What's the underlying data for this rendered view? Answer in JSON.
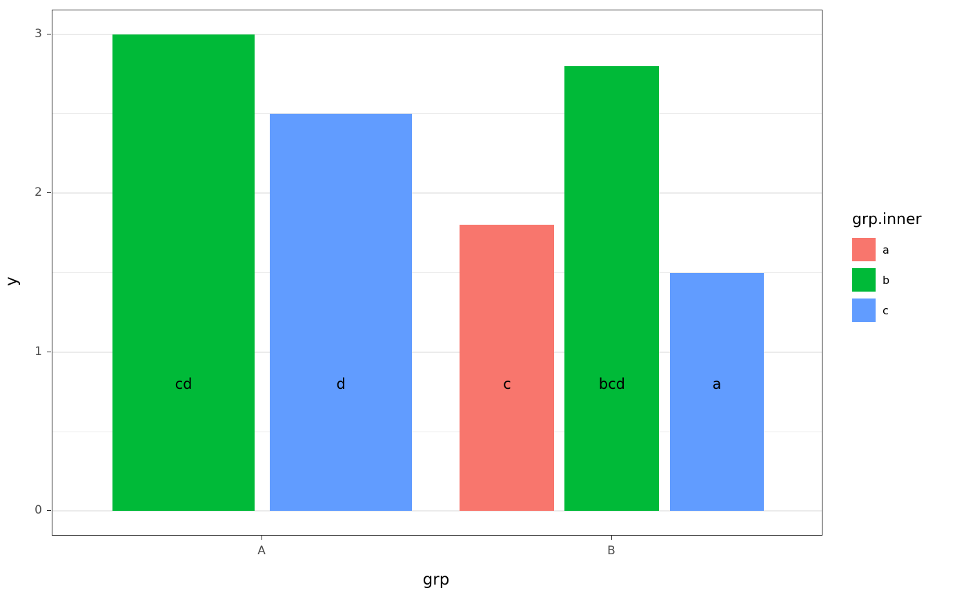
{
  "chart_data": {
    "type": "bar",
    "title": "",
    "xlabel": "grp",
    "ylabel": "y",
    "ylim": [
      0,
      3
    ],
    "yticks": [
      0,
      1,
      2,
      3
    ],
    "minor_gridlines": [
      0.5,
      1.5,
      2.5
    ],
    "categories": [
      "A",
      "B"
    ],
    "grid": "on",
    "legend_position": "right",
    "legend": {
      "title": "grp.inner",
      "entries": [
        {
          "label": "a",
          "color": "#F8766D"
        },
        {
          "label": "b",
          "color": "#00BA38"
        },
        {
          "label": "c",
          "color": "#619CFF"
        }
      ]
    },
    "bars": [
      {
        "group": "A",
        "inner": "b",
        "value": 3.0,
        "label": "cd",
        "color": "#00BA38"
      },
      {
        "group": "A",
        "inner": "c",
        "value": 2.5,
        "label": "d",
        "color": "#619CFF"
      },
      {
        "group": "B",
        "inner": "a",
        "value": 1.8,
        "label": "c",
        "color": "#F8766D"
      },
      {
        "group": "B",
        "inner": "b",
        "value": 2.8,
        "label": "bcd",
        "color": "#00BA38"
      },
      {
        "group": "B",
        "inner": "c",
        "value": 1.5,
        "label": "a",
        "color": "#619CFF"
      }
    ],
    "bar_label_y": 0.8
  }
}
